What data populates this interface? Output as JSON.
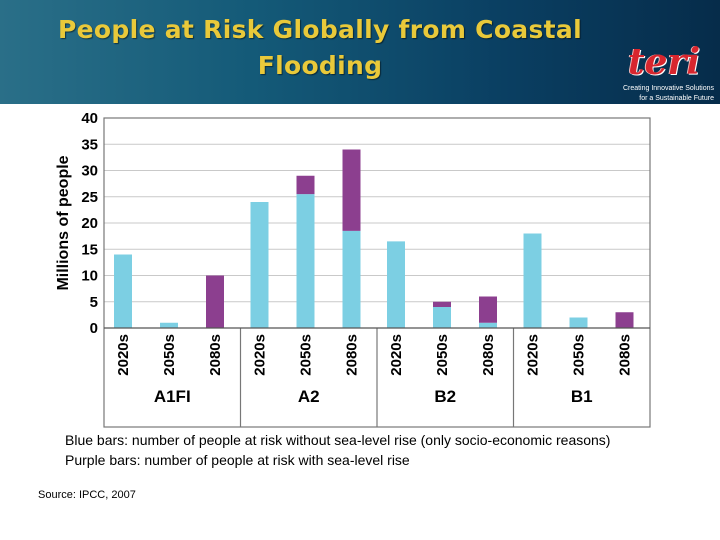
{
  "header": {
    "title_line1": "People at Risk Globally from Coastal",
    "title_line2": "Flooding",
    "logo_text": "teri",
    "tagline_line1": "Creating Innovative Solutions",
    "tagline_line2": "for a Sustainable Future"
  },
  "notes": {
    "blue": "Blue bars: number of people at risk without sea-level rise (only socio-economic reasons)",
    "purple": "Purple bars: number of people at risk with sea-level rise"
  },
  "source": "Source: IPCC, 2007",
  "colors": {
    "blue": "#7ccfe3",
    "purple": "#8c3f8f",
    "title": "#e9c93a"
  },
  "chart_data": {
    "type": "bar",
    "stacked": true,
    "title": "",
    "xlabel": "",
    "ylabel": "Millions of people",
    "ylim": [
      0,
      40
    ],
    "yticks": [
      "0",
      "5",
      "10",
      "15",
      "20",
      "25",
      "30",
      "35",
      "40"
    ],
    "grid": true,
    "groups": [
      {
        "name": "A1FI",
        "categories": [
          "2020s",
          "2050s",
          "2080s"
        ]
      },
      {
        "name": "A2",
        "categories": [
          "2020s",
          "2050s",
          "2080s"
        ]
      },
      {
        "name": "B2",
        "categories": [
          "2020s",
          "2050s",
          "2080s"
        ]
      },
      {
        "name": "B1",
        "categories": [
          "2020s",
          "2050s",
          "2080s"
        ]
      }
    ],
    "series": [
      {
        "name": "Without sea-level rise",
        "color": "#7ccfe3",
        "values": [
          14,
          1,
          0,
          24,
          25.5,
          18.5,
          16.5,
          4,
          1,
          18,
          2,
          0
        ]
      },
      {
        "name": "Additional with sea-level rise",
        "color": "#8c3f8f",
        "values": [
          0,
          0,
          10,
          0,
          3.5,
          15.5,
          0,
          1,
          5,
          0,
          0,
          3
        ]
      }
    ]
  }
}
